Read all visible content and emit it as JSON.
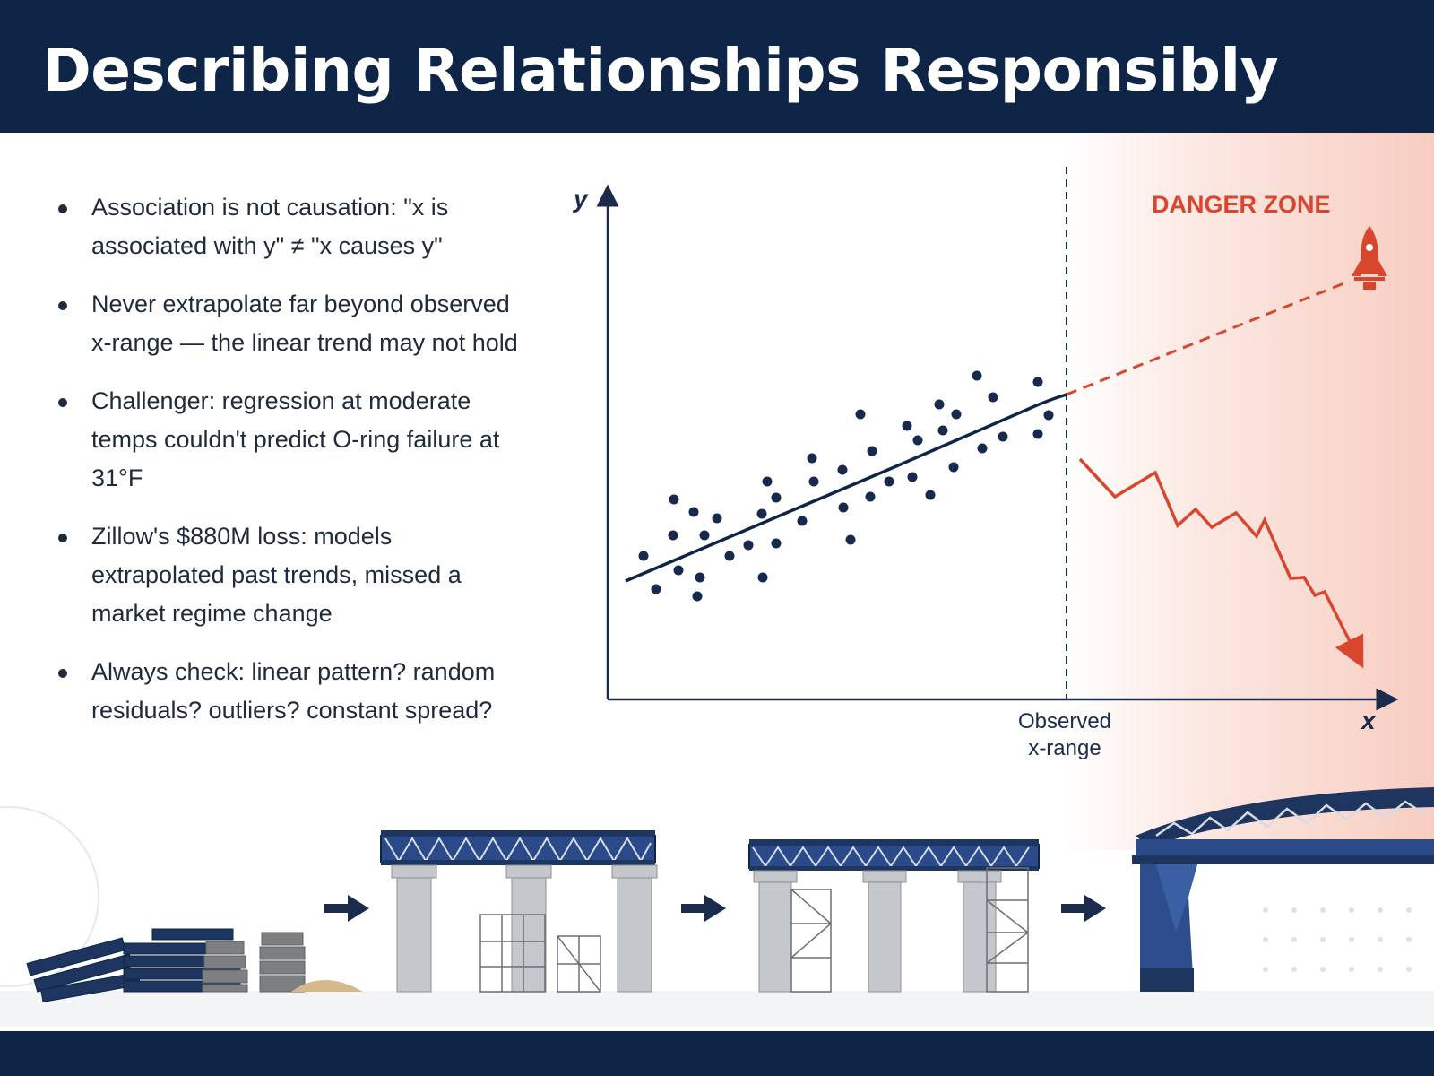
{
  "header": {
    "title": "Describing Relationships Responsibly"
  },
  "bullets": [
    "Association is not causation: \"x is associated with y\" ≠ \"x causes y\"",
    "Never extrapolate far beyond observed x-range — the linear trend may not hold",
    "Challenger: regression at moderate temps couldn't predict O-ring failure at 31°F",
    "Zillow's $880M loss: models extrapolated past trends, missed a market regime change",
    "Always check: linear pattern? random residuals? outliers? constant spread?"
  ],
  "diagram": {
    "y_axis_label": "y",
    "x_axis_label": "x",
    "danger_label": "DANGER ZONE",
    "observed_range_label": "Observed x-range",
    "colors": {
      "navy": "#0f2547",
      "points": "#17294d",
      "danger": "#d9462e"
    },
    "icons": [
      "rocket-icon",
      "arrow-right-icon",
      "bridge-illustration"
    ]
  },
  "process": {
    "stages": [
      "materials",
      "pillars-with-partial-deck",
      "pillars-with-full-deck",
      "finished-arch-bridge"
    ]
  }
}
